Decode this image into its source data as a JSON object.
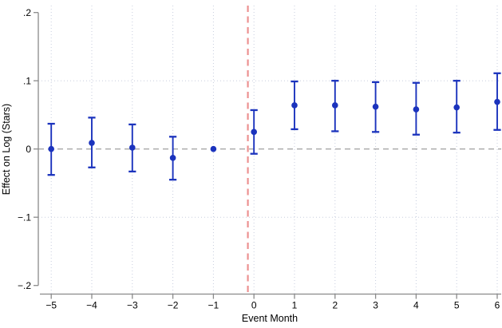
{
  "figure": {
    "background": "#ffffff"
  },
  "chart_data": {
    "type": "scatter",
    "subtype": "event-study-with-confidence-intervals",
    "title": "",
    "xlabel": "Event Month",
    "ylabel": "Effect on Log (Stars)",
    "xlim": [
      -5.35,
      6.15
    ],
    "ylim": [
      -0.21,
      0.21
    ],
    "x_ticks": [
      -5,
      -4,
      -3,
      -2,
      -1,
      0,
      1,
      2,
      3,
      4,
      5,
      6
    ],
    "x_tick_labels": [
      "−5",
      "−4",
      "−3",
      "−2",
      "−1",
      "0",
      "1",
      "2",
      "3",
      "4",
      "5",
      "6"
    ],
    "y_ticks": [
      0.2,
      0.1,
      0,
      -0.1,
      -0.2
    ],
    "y_tick_labels": [
      ".2",
      ".1",
      "0",
      "−.1",
      "−.2"
    ],
    "grid": {
      "vertical_at_x_ticks": true,
      "horizontal_lines": [
        0.1,
        -0.1
      ],
      "style": "dotted",
      "color": "#c7cdde"
    },
    "reference_lines": [
      {
        "orientation": "horizontal",
        "value": 0,
        "style": "dashed",
        "color": "#a8a8a8"
      },
      {
        "orientation": "vertical",
        "value": -0.15,
        "style": "dashed",
        "color": "#ec9191"
      }
    ],
    "series": [
      {
        "name": "point-estimate-with-95ci",
        "marker": "circle",
        "color": "#1b33bd",
        "points": [
          {
            "x": -5,
            "y": 0.0,
            "ci_low": -0.038,
            "ci_high": 0.037
          },
          {
            "x": -4,
            "y": 0.009,
            "ci_low": -0.027,
            "ci_high": 0.046
          },
          {
            "x": -3,
            "y": 0.002,
            "ci_low": -0.033,
            "ci_high": 0.036
          },
          {
            "x": -2,
            "y": -0.013,
            "ci_low": -0.045,
            "ci_high": 0.018
          },
          {
            "x": -1,
            "y": 0.0,
            "ci_low": null,
            "ci_high": null
          },
          {
            "x": 0,
            "y": 0.025,
            "ci_low": -0.007,
            "ci_high": 0.057
          },
          {
            "x": 1,
            "y": 0.064,
            "ci_low": 0.029,
            "ci_high": 0.099
          },
          {
            "x": 2,
            "y": 0.064,
            "ci_low": 0.026,
            "ci_high": 0.1
          },
          {
            "x": 3,
            "y": 0.062,
            "ci_low": 0.025,
            "ci_high": 0.098
          },
          {
            "x": 4,
            "y": 0.058,
            "ci_low": 0.021,
            "ci_high": 0.097
          },
          {
            "x": 5,
            "y": 0.061,
            "ci_low": 0.024,
            "ci_high": 0.1
          },
          {
            "x": 6,
            "y": 0.069,
            "ci_low": 0.028,
            "ci_high": 0.111
          }
        ]
      }
    ],
    "axis_color": "#8a8a8a",
    "text_color": "#000000"
  }
}
